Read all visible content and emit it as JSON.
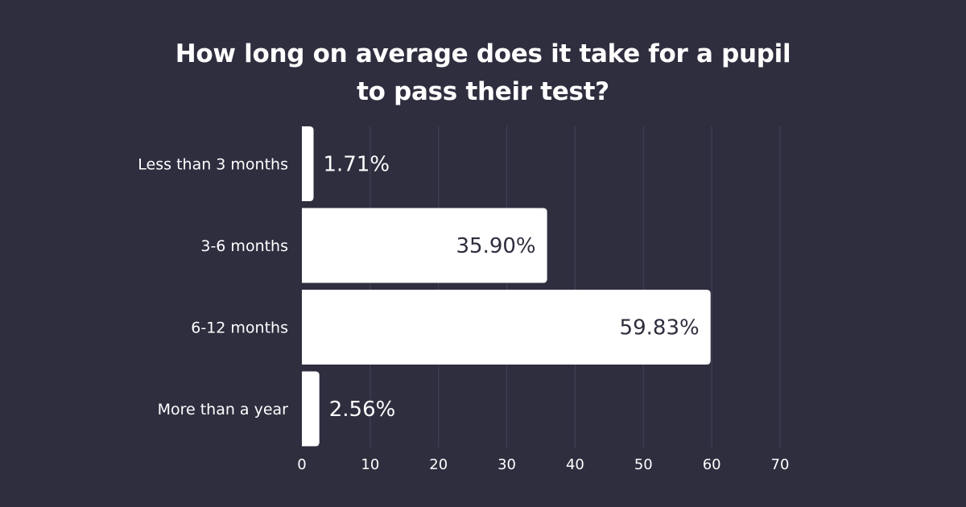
{
  "chart_data": {
    "type": "bar",
    "orientation": "horizontal",
    "title": "How long on average does it take for a pupil to pass their test?",
    "categories": [
      "Less than 3 months",
      "3-6 months",
      "6-12 months",
      "More than a year"
    ],
    "values": [
      1.71,
      35.9,
      59.83,
      2.56
    ],
    "value_labels": [
      "1.71%",
      "35.90%",
      "59.83%",
      "2.56%"
    ],
    "x_ticks": [
      0,
      10,
      20,
      30,
      40,
      50,
      60,
      70
    ],
    "xlim": [
      0,
      70
    ],
    "xlabel": "",
    "ylabel": "",
    "grid": true,
    "legend": "none"
  },
  "colors": {
    "background": "#2e2e3f",
    "bar": "#ffffff",
    "grid": "#44445a",
    "text_light": "#ffffff",
    "text_dark": "#2e2e3f"
  }
}
